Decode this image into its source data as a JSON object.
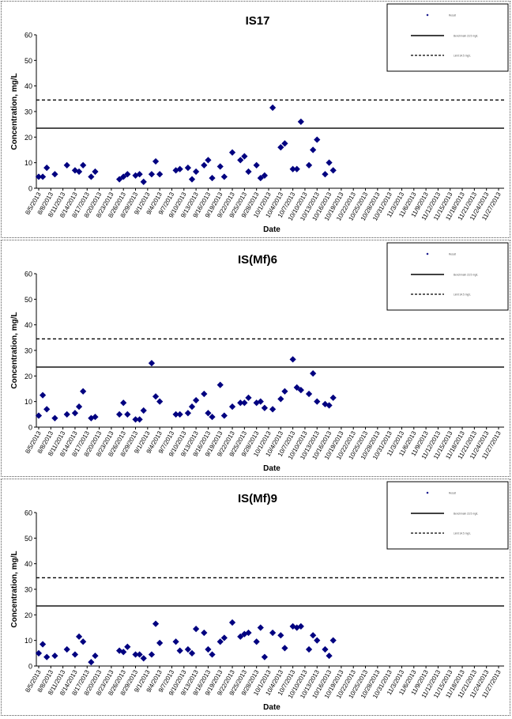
{
  "charts": [
    {
      "type": "scatter",
      "title": "IS17",
      "xlabel": "Date",
      "ylabel": "Concentration, mg/L",
      "ylim": [
        0,
        60
      ],
      "yticks": [
        0,
        10,
        20,
        30,
        40,
        50,
        60
      ],
      "xticks": [
        "8/5/2013",
        "8/8/2013",
        "8/11/2013",
        "8/14/2013",
        "8/17/2013",
        "8/20/2013",
        "8/23/2013",
        "8/26/2013",
        "8/29/2013",
        "9/1/2013",
        "9/4/2013",
        "9/7/2013",
        "9/10/2013",
        "9/13/2013",
        "9/16/2013",
        "9/19/2013",
        "9/22/2013",
        "9/25/2013",
        "9/28/2013",
        "10/1/2013",
        "10/4/2013",
        "10/7/2013",
        "10/10/2013",
        "10/13/2013",
        "10/16/2013",
        "10/19/2013",
        "10/22/2013",
        "10/25/2013",
        "10/28/2013",
        "10/31/2013",
        "11/3/2013",
        "11/6/2013",
        "11/9/2013",
        "11/12/2013",
        "11/15/2013",
        "11/18/2013",
        "11/21/2013",
        "11/24/2013",
        "11/27/2013"
      ],
      "points": [
        [
          "8/5/2013",
          4.5
        ],
        [
          "8/6/2013",
          4.5
        ],
        [
          "8/7/2013",
          8
        ],
        [
          "8/9/2013",
          5.5
        ],
        [
          "8/12/2013",
          9
        ],
        [
          "8/14/2013",
          7
        ],
        [
          "8/15/2013",
          6.5
        ],
        [
          "8/16/2013",
          9
        ],
        [
          "8/18/2013",
          4.5
        ],
        [
          "8/19/2013",
          6.5
        ],
        [
          "8/25/2013",
          3.5
        ],
        [
          "8/26/2013",
          4.5
        ],
        [
          "8/27/2013",
          5.5
        ],
        [
          "8/29/2013",
          5
        ],
        [
          "8/30/2013",
          5.5
        ],
        [
          "8/31/2013",
          2.5
        ],
        [
          "9/2/2013",
          5.5
        ],
        [
          "9/3/2013",
          10.5
        ],
        [
          "9/4/2013",
          5.5
        ],
        [
          "9/8/2013",
          7
        ],
        [
          "9/9/2013",
          7.5
        ],
        [
          "9/11/2013",
          8
        ],
        [
          "9/12/2013",
          3.5
        ],
        [
          "9/13/2013",
          6.5
        ],
        [
          "9/15/2013",
          9
        ],
        [
          "9/16/2013",
          11
        ],
        [
          "9/17/2013",
          4
        ],
        [
          "9/19/2013",
          8.5
        ],
        [
          "9/20/2013",
          4.5
        ],
        [
          "9/22/2013",
          14
        ],
        [
          "9/24/2013",
          11
        ],
        [
          "9/25/2013",
          12.5
        ],
        [
          "9/26/2013",
          6.5
        ],
        [
          "9/28/2013",
          9
        ],
        [
          "9/29/2013",
          4
        ],
        [
          "9/30/2013",
          5
        ],
        [
          "10/2/2013",
          31.5
        ],
        [
          "10/4/2013",
          16
        ],
        [
          "10/5/2013",
          17.5
        ],
        [
          "10/7/2013",
          7.5
        ],
        [
          "10/8/2013",
          7.5
        ],
        [
          "10/9/2013",
          26
        ],
        [
          "10/11/2013",
          9
        ],
        [
          "10/12/2013",
          15
        ],
        [
          "10/13/2013",
          19
        ],
        [
          "10/15/2013",
          5.5
        ],
        [
          "10/16/2013",
          10
        ],
        [
          "10/17/2013",
          7
        ]
      ],
      "reference_lines": [
        {
          "y": 23.5,
          "style": "solid"
        },
        {
          "y": 34.5,
          "style": "dashed"
        }
      ],
      "legend": {
        "placement": "top-right",
        "entries": [
          "Result",
          "Benchmark 23.5 mg/L",
          "Limit 34.5 mg/L"
        ]
      },
      "grid": false
    },
    {
      "type": "scatter",
      "title": "IS(Mf)6",
      "xlabel": "Date",
      "ylabel": "Concentration, mg/L",
      "ylim": [
        0,
        60
      ],
      "yticks": [
        0,
        10,
        20,
        30,
        40,
        50,
        60
      ],
      "xticks": [
        "8/5/2013",
        "8/8/2013",
        "8/11/2013",
        "8/14/2013",
        "8/17/2013",
        "8/20/2013",
        "8/23/2013",
        "8/26/2013",
        "8/29/2013",
        "9/1/2013",
        "9/4/2013",
        "9/7/2013",
        "9/10/2013",
        "9/13/2013",
        "9/16/2013",
        "9/19/2013",
        "9/22/2013",
        "9/25/2013",
        "9/28/2013",
        "10/1/2013",
        "10/4/2013",
        "10/7/2013",
        "10/10/2013",
        "10/13/2013",
        "10/16/2013",
        "10/19/2013",
        "10/22/2013",
        "10/25/2013",
        "10/28/2013",
        "10/31/2013",
        "11/3/2013",
        "11/6/2013",
        "11/9/2013",
        "11/12/2013",
        "11/15/2013",
        "11/18/2013",
        "11/21/2013",
        "11/24/2013",
        "11/27/2013"
      ],
      "points": [
        [
          "8/5/2013",
          4.5
        ],
        [
          "8/6/2013",
          12.5
        ],
        [
          "8/7/2013",
          7
        ],
        [
          "8/9/2013",
          3.5
        ],
        [
          "8/12/2013",
          5
        ],
        [
          "8/14/2013",
          5.5
        ],
        [
          "8/15/2013",
          8
        ],
        [
          "8/16/2013",
          14
        ],
        [
          "8/18/2013",
          3.5
        ],
        [
          "8/19/2013",
          4
        ],
        [
          "8/25/2013",
          5
        ],
        [
          "8/26/2013",
          9.5
        ],
        [
          "8/27/2013",
          5
        ],
        [
          "8/29/2013",
          3
        ],
        [
          "8/30/2013",
          3
        ],
        [
          "8/31/2013",
          6.5
        ],
        [
          "9/2/2013",
          25
        ],
        [
          "9/3/2013",
          12
        ],
        [
          "9/4/2013",
          10
        ],
        [
          "9/8/2013",
          5
        ],
        [
          "9/9/2013",
          5
        ],
        [
          "9/11/2013",
          5.5
        ],
        [
          "9/12/2013",
          8
        ],
        [
          "9/13/2013",
          10.5
        ],
        [
          "9/15/2013",
          13
        ],
        [
          "9/16/2013",
          5.5
        ],
        [
          "9/17/2013",
          4
        ],
        [
          "9/19/2013",
          16.5
        ],
        [
          "9/20/2013",
          4.5
        ],
        [
          "9/22/2013",
          8
        ],
        [
          "9/24/2013",
          9.5
        ],
        [
          "9/25/2013",
          9.5
        ],
        [
          "9/26/2013",
          11.5
        ],
        [
          "9/28/2013",
          9.5
        ],
        [
          "9/29/2013",
          10
        ],
        [
          "9/30/2013",
          7.5
        ],
        [
          "10/2/2013",
          7
        ],
        [
          "10/4/2013",
          11
        ],
        [
          "10/5/2013",
          14
        ],
        [
          "10/7/2013",
          26.5
        ],
        [
          "10/8/2013",
          15.5
        ],
        [
          "10/9/2013",
          14.5
        ],
        [
          "10/11/2013",
          13
        ],
        [
          "10/12/2013",
          21
        ],
        [
          "10/13/2013",
          10
        ],
        [
          "10/15/2013",
          9
        ],
        [
          "10/16/2013",
          8.5
        ],
        [
          "10/17/2013",
          11.5
        ]
      ],
      "reference_lines": [
        {
          "y": 23.5,
          "style": "solid"
        },
        {
          "y": 34.5,
          "style": "dashed"
        }
      ],
      "legend": {
        "placement": "top-right",
        "entries": [
          "Result",
          "Benchmark 23.5 mg/L",
          "Limit 34.5 mg/L"
        ]
      },
      "grid": false
    },
    {
      "type": "scatter",
      "title": "IS(Mf)9",
      "xlabel": "Date",
      "ylabel": "Concentration, mg/L",
      "ylim": [
        0,
        60
      ],
      "yticks": [
        0,
        10,
        20,
        30,
        40,
        50,
        60
      ],
      "xticks": [
        "8/5/2013",
        "8/8/2013",
        "8/11/2013",
        "8/14/2013",
        "8/17/2013",
        "8/20/2013",
        "8/23/2013",
        "8/26/2013",
        "8/29/2013",
        "9/1/2013",
        "9/4/2013",
        "9/7/2013",
        "9/10/2013",
        "9/13/2013",
        "9/16/2013",
        "9/19/2013",
        "9/22/2013",
        "9/25/2013",
        "9/28/2013",
        "10/1/2013",
        "10/4/2013",
        "10/7/2013",
        "10/10/2013",
        "10/13/2013",
        "10/16/2013",
        "10/19/2013",
        "10/22/2013",
        "10/25/2013",
        "10/28/2013",
        "10/31/2013",
        "11/3/2013",
        "11/6/2013",
        "11/9/2013",
        "11/12/2013",
        "11/15/2013",
        "11/18/2013",
        "11/21/2013",
        "11/24/2013",
        "11/27/2013"
      ],
      "points": [
        [
          "8/5/2013",
          5
        ],
        [
          "8/6/2013",
          8.5
        ],
        [
          "8/7/2013",
          3.5
        ],
        [
          "8/9/2013",
          4
        ],
        [
          "8/12/2013",
          6.5
        ],
        [
          "8/14/2013",
          4.5
        ],
        [
          "8/15/2013",
          11.5
        ],
        [
          "8/16/2013",
          9.5
        ],
        [
          "8/18/2013",
          1.5
        ],
        [
          "8/19/2013",
          4
        ],
        [
          "8/25/2013",
          6
        ],
        [
          "8/26/2013",
          5.5
        ],
        [
          "8/27/2013",
          7.5
        ],
        [
          "8/29/2013",
          4.5
        ],
        [
          "8/30/2013",
          4.5
        ],
        [
          "8/31/2013",
          3
        ],
        [
          "9/2/2013",
          4.5
        ],
        [
          "9/3/2013",
          16.5
        ],
        [
          "9/4/2013",
          9
        ],
        [
          "9/8/2013",
          9.5
        ],
        [
          "9/9/2013",
          6
        ],
        [
          "9/11/2013",
          6.5
        ],
        [
          "9/12/2013",
          5
        ],
        [
          "9/13/2013",
          14.5
        ],
        [
          "9/15/2013",
          13
        ],
        [
          "9/16/2013",
          6.5
        ],
        [
          "9/17/2013",
          4.5
        ],
        [
          "9/19/2013",
          9.5
        ],
        [
          "9/20/2013",
          11
        ],
        [
          "9/22/2013",
          17
        ],
        [
          "9/24/2013",
          11.5
        ],
        [
          "9/25/2013",
          12.5
        ],
        [
          "9/26/2013",
          13
        ],
        [
          "9/28/2013",
          9.5
        ],
        [
          "9/29/2013",
          15
        ],
        [
          "9/30/2013",
          3.5
        ],
        [
          "10/2/2013",
          13
        ],
        [
          "10/4/2013",
          12
        ],
        [
          "10/5/2013",
          7
        ],
        [
          "10/7/2013",
          15.5
        ],
        [
          "10/8/2013",
          15
        ],
        [
          "10/9/2013",
          15.5
        ],
        [
          "10/11/2013",
          6.5
        ],
        [
          "10/12/2013",
          12
        ],
        [
          "10/13/2013",
          10
        ],
        [
          "10/15/2013",
          6.5
        ],
        [
          "10/16/2013",
          4
        ],
        [
          "10/17/2013",
          10
        ]
      ],
      "reference_lines": [
        {
          "y": 23.5,
          "style": "solid"
        },
        {
          "y": 34.5,
          "style": "dashed"
        }
      ],
      "legend": {
        "placement": "top-right",
        "entries": [
          "Result",
          "Benchmark 23.5 mg/L",
          "Limit 34.5 mg/L"
        ]
      },
      "grid": false
    }
  ],
  "colors": {
    "marker": "#000080",
    "axis": "#000000",
    "tick_text": "#000000"
  }
}
